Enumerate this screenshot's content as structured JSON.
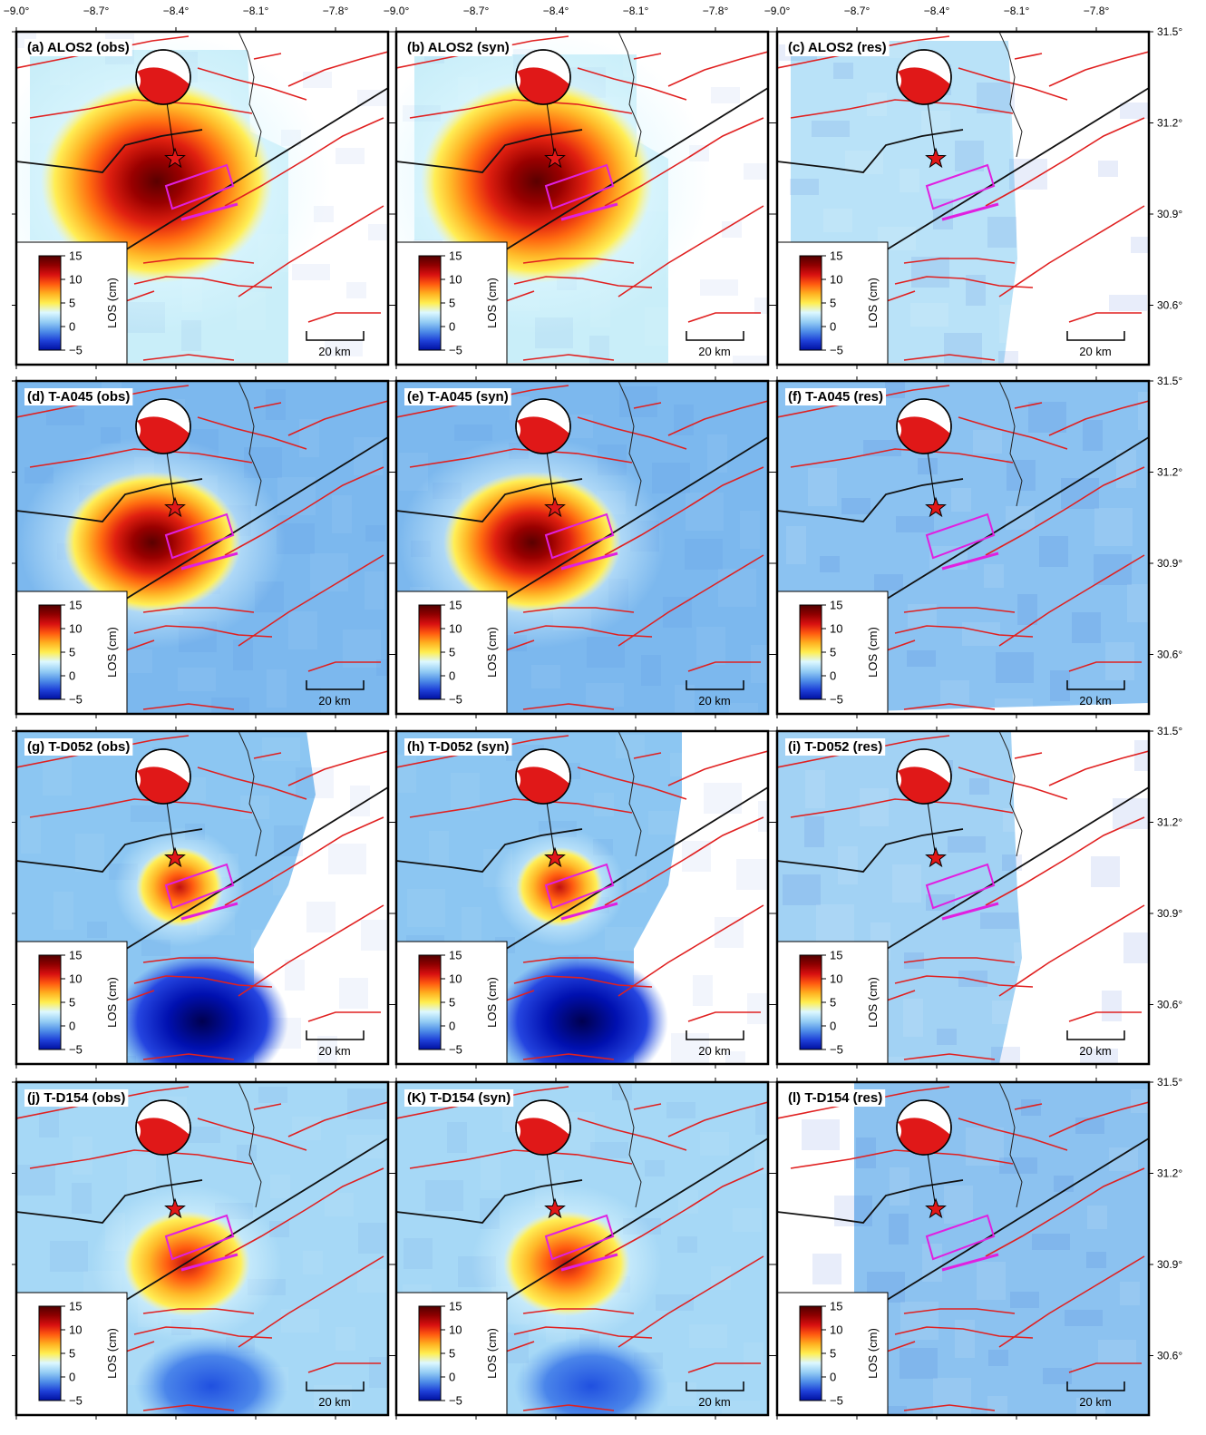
{
  "lon_ticks": [
    "−9.0°",
    "−8.7°",
    "−8.4°",
    "−8.1°",
    "−7.8°"
  ],
  "lat_ticks": [
    "31.5°",
    "31.2°",
    "30.9°",
    "30.6°"
  ],
  "colorbar": {
    "label": "LOS (cm)",
    "ticks": [
      "15",
      "10",
      "5",
      "0",
      "−5"
    ]
  },
  "scale_bar": "20 km",
  "panels": [
    {
      "label": "(a) ALOS2 (obs)"
    },
    {
      "label": "(b) ALOS2 (syn)"
    },
    {
      "label": "(c) ALOS2 (res)"
    },
    {
      "label": "(d) T-A045 (obs)"
    },
    {
      "label": "(e) T-A045 (syn)"
    },
    {
      "label": "(f) T-A045 (res)"
    },
    {
      "label": "(g) T-D052 (obs)"
    },
    {
      "label": "(h) T-D052 (syn)"
    },
    {
      "label": "(i) T-D052 (res)"
    },
    {
      "label": "(j) T-D154 (obs)"
    },
    {
      "label": "(K) T-D154 (syn)"
    },
    {
      "label": "(l) T-D154 (res)"
    }
  ]
}
